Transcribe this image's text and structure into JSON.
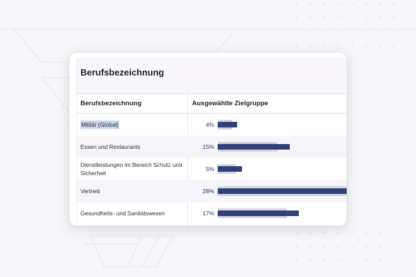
{
  "card": {
    "title": "Berufsbezeichnung",
    "columns": {
      "role": "Berufsbezeichnung",
      "target": "Ausgewählte Zielgruppe"
    },
    "rows": [
      {
        "label": "Militär (Global)",
        "percent": "4%",
        "target_value": 4,
        "baseline_value": 3,
        "highlighted": true
      },
      {
        "label": "Essen und Restaurants",
        "percent": "15%",
        "target_value": 15,
        "baseline_value": 12.5,
        "highlighted": false
      },
      {
        "label": "Dienstleistungen im Bereich Schutz und Sicherheit",
        "percent": "5%",
        "target_value": 5,
        "baseline_value": 3.8,
        "highlighted": false
      },
      {
        "label": "Vertrieb",
        "percent": "28%",
        "target_value": 28,
        "baseline_value": 28,
        "highlighted": false
      },
      {
        "label": "Gesundheits- und Sanitätswesen",
        "percent": "17%",
        "target_value": 17,
        "baseline_value": 14.5,
        "highlighted": false
      }
    ]
  },
  "colors": {
    "accent": "#2e4077",
    "baseline": "#d3d2dd",
    "highlight": "#c9d6ef"
  }
}
